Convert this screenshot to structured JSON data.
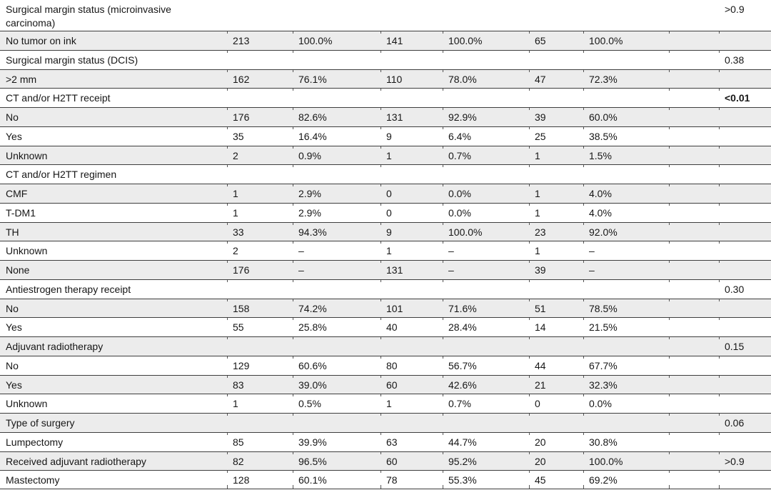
{
  "colors": {
    "shaded_row": "#ececec",
    "rule": "#3e3e3e",
    "text": "#161616",
    "background": "#ffffff"
  },
  "table": {
    "dash": "–",
    "rows": [
      {
        "label": "Surgical margin status (microinvasive carcinoma)",
        "indent": 0,
        "type": "variable",
        "p": ">0.9",
        "p_bold": false
      },
      {
        "label": "No tumor on ink",
        "indent": 1,
        "type": "level",
        "values": [
          "213",
          "100.0%",
          "141",
          "100.0%",
          "65",
          "100.0%"
        ]
      },
      {
        "label": "Surgical margin status (DCIS)",
        "indent": 0,
        "type": "variable",
        "p": "0.38",
        "p_bold": false
      },
      {
        "label": ">2 mm",
        "indent": 1,
        "type": "level",
        "values": [
          "162",
          "76.1%",
          "110",
          "78.0%",
          "47",
          "72.3%"
        ]
      },
      {
        "label": "CT and/or H2TT receipt",
        "indent": 0,
        "type": "variable",
        "p": "<0.01",
        "p_bold": true
      },
      {
        "label": "No",
        "indent": 1,
        "type": "level",
        "values": [
          "176",
          "82.6%",
          "131",
          "92.9%",
          "39",
          "60.0%"
        ]
      },
      {
        "label": "Yes",
        "indent": 1,
        "type": "level",
        "values": [
          "35",
          "16.4%",
          "9",
          "6.4%",
          "25",
          "38.5%"
        ]
      },
      {
        "label": "Unknown",
        "indent": 1,
        "type": "level",
        "values": [
          "2",
          "0.9%",
          "1",
          "0.7%",
          "1",
          "1.5%"
        ]
      },
      {
        "label": "CT and/or H2TT regimen",
        "indent": 0,
        "type": "variable"
      },
      {
        "label": "CMF",
        "indent": 1,
        "type": "level",
        "values": [
          "1",
          "2.9%",
          "0",
          "0.0%",
          "1",
          "4.0%"
        ]
      },
      {
        "label": "T-DM1",
        "indent": 1,
        "type": "level",
        "values": [
          "1",
          "2.9%",
          "0",
          "0.0%",
          "1",
          "4.0%"
        ]
      },
      {
        "label": "TH",
        "indent": 1,
        "type": "level",
        "values": [
          "33",
          "94.3%",
          "9",
          "100.0%",
          "23",
          "92.0%"
        ]
      },
      {
        "label": "Unknown",
        "indent": 1,
        "type": "level",
        "values": [
          "2",
          "–",
          "1",
          "–",
          "1",
          "–"
        ]
      },
      {
        "label": "None",
        "indent": 1,
        "type": "level",
        "values": [
          "176",
          "–",
          "131",
          "–",
          "39",
          "–"
        ]
      },
      {
        "label": "Antiestrogen therapy receipt",
        "indent": 0,
        "type": "variable",
        "p": "0.30",
        "p_bold": false
      },
      {
        "label": "No",
        "indent": 1,
        "type": "level",
        "values": [
          "158",
          "74.2%",
          "101",
          "71.6%",
          "51",
          "78.5%"
        ]
      },
      {
        "label": "Yes",
        "indent": 1,
        "type": "level",
        "values": [
          "55",
          "25.8%",
          "40",
          "28.4%",
          "14",
          "21.5%"
        ]
      },
      {
        "label": "Adjuvant radiotherapy",
        "indent": 0,
        "type": "variable",
        "p": "0.15",
        "p_bold": false
      },
      {
        "label": "No",
        "indent": 1,
        "type": "level",
        "values": [
          "129",
          "60.6%",
          "80",
          "56.7%",
          "44",
          "67.7%"
        ]
      },
      {
        "label": "Yes",
        "indent": 1,
        "type": "level",
        "values": [
          "83",
          "39.0%",
          "60",
          "42.6%",
          "21",
          "32.3%"
        ]
      },
      {
        "label": "Unknown",
        "indent": 1,
        "type": "level",
        "values": [
          "1",
          "0.5%",
          "1",
          "0.7%",
          "0",
          "0.0%"
        ]
      },
      {
        "label": "Type of surgery",
        "indent": 0,
        "type": "variable",
        "p": "0.06",
        "p_bold": false
      },
      {
        "label": "Lumpectomy",
        "indent": 1,
        "type": "level",
        "values": [
          "85",
          "39.9%",
          "63",
          "44.7%",
          "20",
          "30.8%"
        ]
      },
      {
        "label": "Received adjuvant radiotherapy",
        "indent": 2,
        "type": "level",
        "values": [
          "82",
          "96.5%",
          "60",
          "95.2%",
          "20",
          "100.0%"
        ],
        "p": ">0.9",
        "p_bold": false
      },
      {
        "label": "Mastectomy",
        "indent": 1,
        "type": "level",
        "values": [
          "128",
          "60.1%",
          "78",
          "55.3%",
          "45",
          "69.2%"
        ]
      }
    ]
  }
}
